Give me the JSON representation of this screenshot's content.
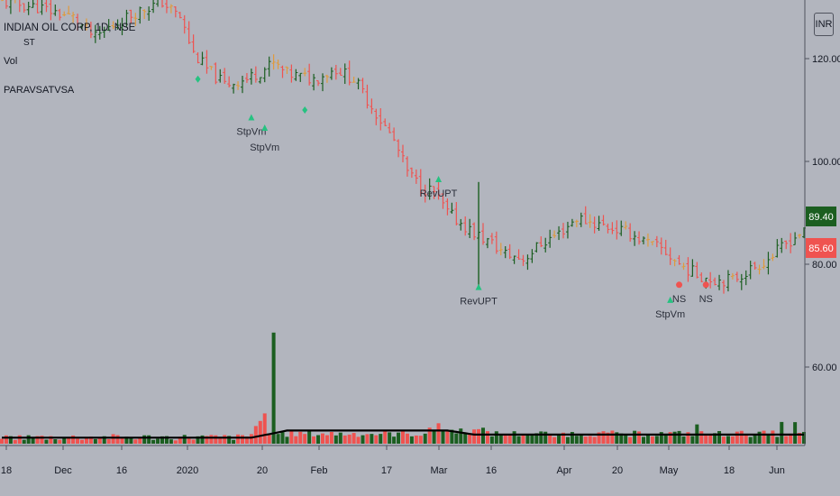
{
  "legend": {
    "symbol": "INDIAN OIL CORP, 1D, NSE",
    "indicator_vol": "Vol",
    "indicator_vsa": "PARAVSATVSA",
    "st_marker": "ST"
  },
  "price_axis": {
    "unit": "INR",
    "current_tag": "89.40",
    "prev_tag": "85.60",
    "current_color": "#1b5e20",
    "prev_color": "#ef5350"
  },
  "colors": {
    "up": "#1b5e20",
    "down": "#ef5350",
    "neutral": "#e09a3c",
    "volume_ma": "#000000",
    "signal_green": "#26c281",
    "signal_red": "#ef5350"
  },
  "chart_data": {
    "type": "bar",
    "title": "INDIAN OIL CORP, 1D, NSE",
    "y_ticks": [
      "120.00",
      "100.00",
      "80.00",
      "60.00"
    ],
    "x_ticks": [
      "18",
      "Dec",
      "16",
      "2020",
      "20",
      "Feb",
      "17",
      "Mar",
      "16",
      "Apr",
      "20",
      "May",
      "18",
      "Jun"
    ],
    "price_path": [
      [
        0,
        131
      ],
      [
        8,
        130
      ],
      [
        16,
        128
      ],
      [
        21,
        124
      ],
      [
        24,
        126
      ],
      [
        30,
        129
      ],
      [
        36,
        131
      ],
      [
        40,
        128
      ],
      [
        43,
        121
      ],
      [
        46,
        118
      ],
      [
        50,
        115
      ],
      [
        55,
        116
      ],
      [
        61,
        119
      ],
      [
        64,
        117
      ],
      [
        70,
        116
      ],
      [
        75,
        118
      ],
      [
        79,
        116
      ],
      [
        82,
        112
      ],
      [
        85,
        108
      ],
      [
        88,
        104
      ],
      [
        91,
        98
      ],
      [
        94,
        95
      ],
      [
        97,
        94
      ],
      [
        100,
        90
      ],
      [
        103,
        88
      ],
      [
        106,
        86
      ],
      [
        110,
        84
      ],
      [
        113,
        82
      ],
      [
        117,
        81
      ],
      [
        121,
        84
      ],
      [
        125,
        86
      ],
      [
        129,
        89
      ],
      [
        133,
        88
      ],
      [
        137,
        87
      ],
      [
        141,
        86
      ],
      [
        145,
        84
      ],
      [
        148,
        83
      ],
      [
        152,
        80
      ],
      [
        156,
        78
      ],
      [
        160,
        77
      ],
      [
        164,
        77
      ],
      [
        168,
        79
      ],
      [
        172,
        81
      ],
      [
        176,
        84
      ],
      [
        179,
        86
      ]
    ],
    "annotations": [
      {
        "text": "StpVm",
        "idx": 56,
        "price": 108.5,
        "kind": "green-triangle"
      },
      {
        "text": "StpVm",
        "idx": 59,
        "price": 106.5,
        "kind": "green-triangle"
      },
      {
        "text": "RevUPT",
        "idx": 98,
        "price": 96.5,
        "kind": "green-triangle"
      },
      {
        "text": "RevUPT",
        "idx": 107,
        "price": 75.5,
        "kind": "green-triangle"
      },
      {
        "text": "StpVm",
        "idx": 150,
        "price": 73,
        "kind": "green-triangle"
      },
      {
        "text": "NS",
        "idx": 152,
        "price": 76,
        "kind": "red-dot"
      },
      {
        "text": "NS",
        "idx": 158,
        "price": 76,
        "kind": "red-dot"
      }
    ],
    "volume_spikes": [
      {
        "idx": 57,
        "value": 3.5,
        "color": "red"
      },
      {
        "idx": 58,
        "value": 4.5,
        "color": "red"
      },
      {
        "idx": 59,
        "value": 6,
        "color": "red"
      },
      {
        "idx": 61,
        "value": 22,
        "color": "green"
      }
    ]
  }
}
